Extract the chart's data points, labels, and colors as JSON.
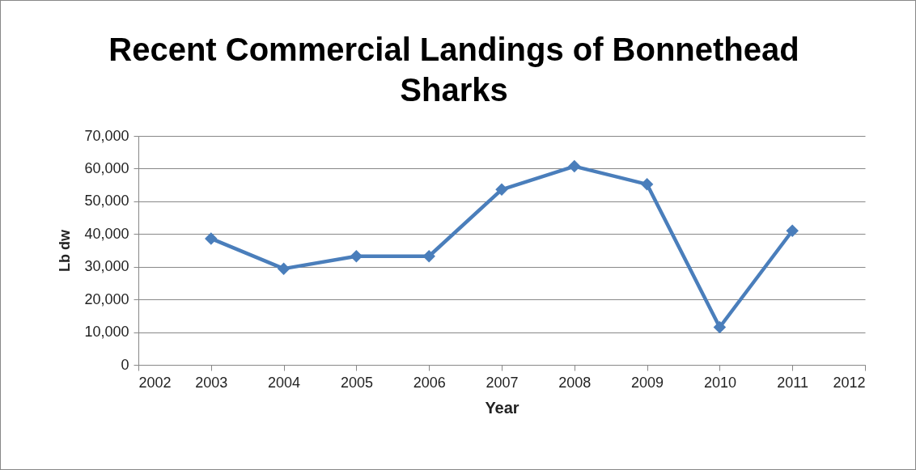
{
  "chart_data": {
    "type": "line",
    "title": "Recent Commercial Landings of Bonnethead Sharks",
    "xlabel": "Year",
    "ylabel": "Lb dw",
    "x": [
      2003,
      2004,
      2005,
      2006,
      2007,
      2008,
      2009,
      2010,
      2011
    ],
    "series": [
      {
        "color": "#4a7ebb",
        "values": [
          38600,
          29400,
          33200,
          33200,
          53600,
          60700,
          55200,
          11500,
          41000
        ]
      }
    ],
    "xlim": [
      2002,
      2012
    ],
    "xticks": [
      2002,
      2003,
      2004,
      2005,
      2006,
      2007,
      2008,
      2009,
      2010,
      2011,
      2012
    ],
    "ylim": [
      0,
      70000
    ],
    "yticks": [
      0,
      {
        "value": 10000,
        "label": "10,000"
      },
      {
        "value": 20000,
        "label": "20,000"
      },
      {
        "value": 30000,
        "label": "30,000"
      },
      {
        "value": 40000,
        "label": "40,000"
      },
      {
        "value": 50000,
        "label": "50,000"
      },
      {
        "value": 60000,
        "label": "60,000"
      },
      {
        "value": 70000,
        "label": "70,000"
      }
    ],
    "grid": "y",
    "marker": "diamond",
    "line_style": "solid"
  }
}
